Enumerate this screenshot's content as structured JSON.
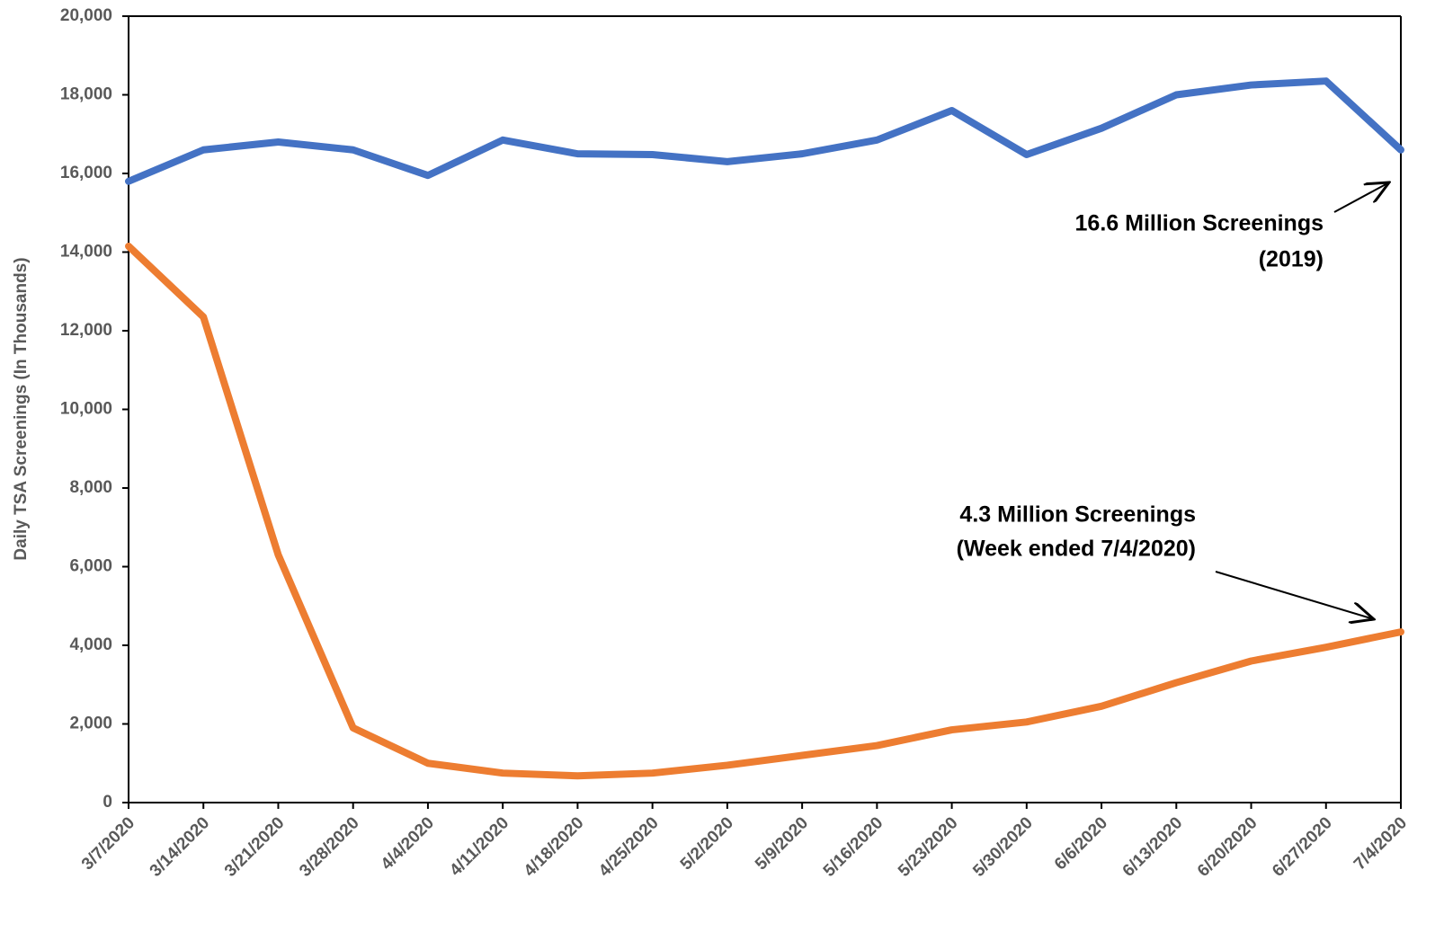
{
  "chart_data": {
    "type": "line",
    "y_label": "Daily TSA Screenings (In Thousands)",
    "categories": [
      "3/7/2020",
      "3/14/2020",
      "3/21/2020",
      "3/28/2020",
      "4/4/2020",
      "4/11/2020",
      "4/18/2020",
      "4/25/2020",
      "5/2/2020",
      "5/9/2020",
      "5/16/2020",
      "5/23/2020",
      "5/30/2020",
      "6/6/2020",
      "6/13/2020",
      "6/20/2020",
      "6/27/2020",
      "7/4/2020"
    ],
    "series": [
      {
        "color": "#4472c4",
        "values": [
          15800,
          16600,
          16800,
          16600,
          15950,
          16850,
          16500,
          16480,
          16300,
          16500,
          16850,
          17600,
          16480,
          17150,
          18000,
          18250,
          18350,
          16600
        ]
      },
      {
        "color": "#ed7d31",
        "values": [
          14150,
          12350,
          6300,
          1900,
          1000,
          750,
          680,
          750,
          950,
          1200,
          1450,
          1850,
          2050,
          2450,
          3050,
          3600,
          3950,
          4340
        ]
      }
    ],
    "annotations": [
      {
        "lines": [
          "16.6 Million Screenings",
          "(2019)"
        ]
      },
      {
        "lines": [
          "4.3 Million Screenings",
          "(Week ended 7/4/2020)"
        ]
      }
    ],
    "ylim": [
      0,
      20000
    ],
    "yticks": [
      0,
      {
        "value": 2000,
        "label": "2,000"
      },
      {
        "value": 4000,
        "label": "4,000"
      },
      {
        "value": 6000,
        "label": "6,000"
      },
      {
        "value": 8000,
        "label": "8,000"
      },
      {
        "value": 10000,
        "label": "10,000"
      },
      {
        "value": 12000,
        "label": "12,000"
      },
      {
        "value": 14000,
        "label": "14,000"
      },
      {
        "value": 16000,
        "label": "16,000"
      },
      {
        "value": 18000,
        "label": "18,000"
      },
      {
        "value": 20000,
        "label": "20,000"
      }
    ],
    "grid": false
  }
}
